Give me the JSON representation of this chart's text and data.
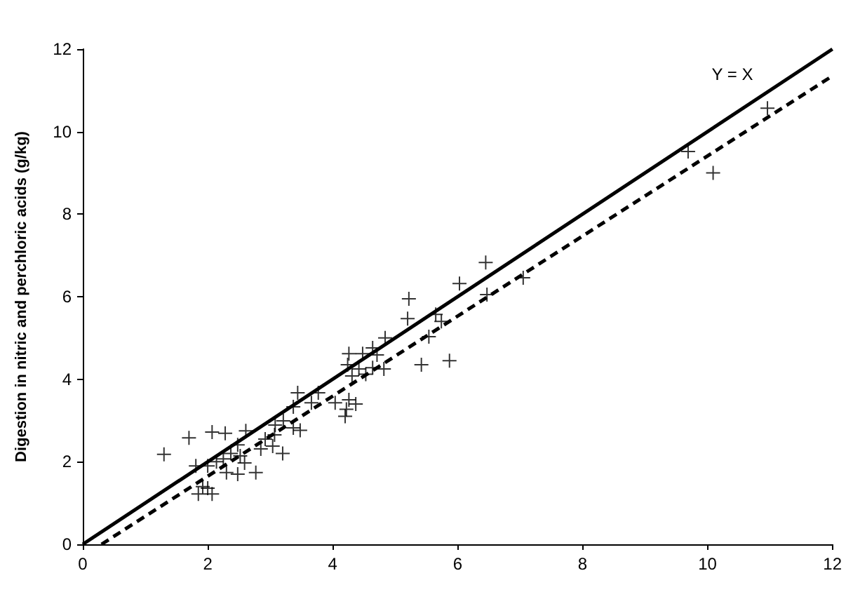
{
  "chart_data": {
    "type": "scatter",
    "ylabel": "Digestion in nitric and perchloric acids (g/kg)",
    "xlim": [
      0,
      12
    ],
    "xticks": [
      0,
      2,
      4,
      6,
      8,
      10,
      12
    ],
    "ylim": [
      0,
      12
    ],
    "yticks": [
      0,
      2,
      4,
      6,
      8,
      10,
      12
    ],
    "grid": false,
    "annotations": [
      "Y = X"
    ],
    "series": [
      {
        "marker": "cross",
        "color": "#000000",
        "x": [
          1.3,
          1.7,
          2.07,
          2.28,
          2.61,
          2.48,
          1.81,
          2.0,
          2.14,
          2.25,
          2.37,
          2.52,
          2.59,
          2.3,
          2.48,
          2.77,
          1.92,
          2.0,
          1.85,
          2.07,
          2.92,
          3.07,
          3.2,
          3.04,
          2.85,
          6.45,
          6.03,
          5.22,
          5.2,
          5.65,
          5.74,
          5.54,
          5.42,
          5.87,
          4.84,
          4.64,
          4.26,
          4.48,
          4.71,
          4.24,
          4.42,
          4.64,
          4.82,
          4.31,
          4.53,
          3.44,
          3.77,
          3.66,
          4.04,
          4.26,
          4.37,
          4.22,
          4.2,
          3.37,
          3.21,
          3.37,
          3.48,
          3.08,
          6.47,
          7.05,
          10.96,
          9.69,
          10.09
        ],
        "values": [
          2.18,
          2.58,
          2.72,
          2.69,
          2.75,
          2.41,
          1.9,
          1.9,
          2.0,
          2.07,
          2.2,
          2.14,
          1.97,
          1.74,
          1.7,
          1.74,
          1.4,
          1.36,
          1.22,
          1.22,
          2.55,
          2.65,
          2.2,
          2.38,
          2.31,
          6.83,
          6.32,
          5.95,
          5.47,
          5.57,
          5.4,
          5.03,
          4.35,
          4.45,
          5.0,
          4.76,
          4.62,
          4.62,
          4.59,
          4.35,
          4.25,
          4.28,
          4.25,
          4.08,
          4.12,
          3.67,
          3.67,
          3.43,
          3.43,
          3.5,
          3.4,
          3.27,
          3.1,
          3.33,
          2.99,
          2.82,
          2.76,
          2.89,
          6.05,
          6.46,
          10.57,
          9.52,
          9.0
        ]
      },
      {
        "type": "line",
        "marker": "none",
        "line_style": "solid",
        "color": "#000000",
        "x": [
          0,
          12
        ],
        "values": [
          0,
          12
        ]
      },
      {
        "type": "line",
        "marker": "none",
        "line_style": "dashed",
        "color": "#000000",
        "x": [
          0.3,
          12
        ],
        "values": [
          0,
          11.35
        ]
      }
    ]
  }
}
